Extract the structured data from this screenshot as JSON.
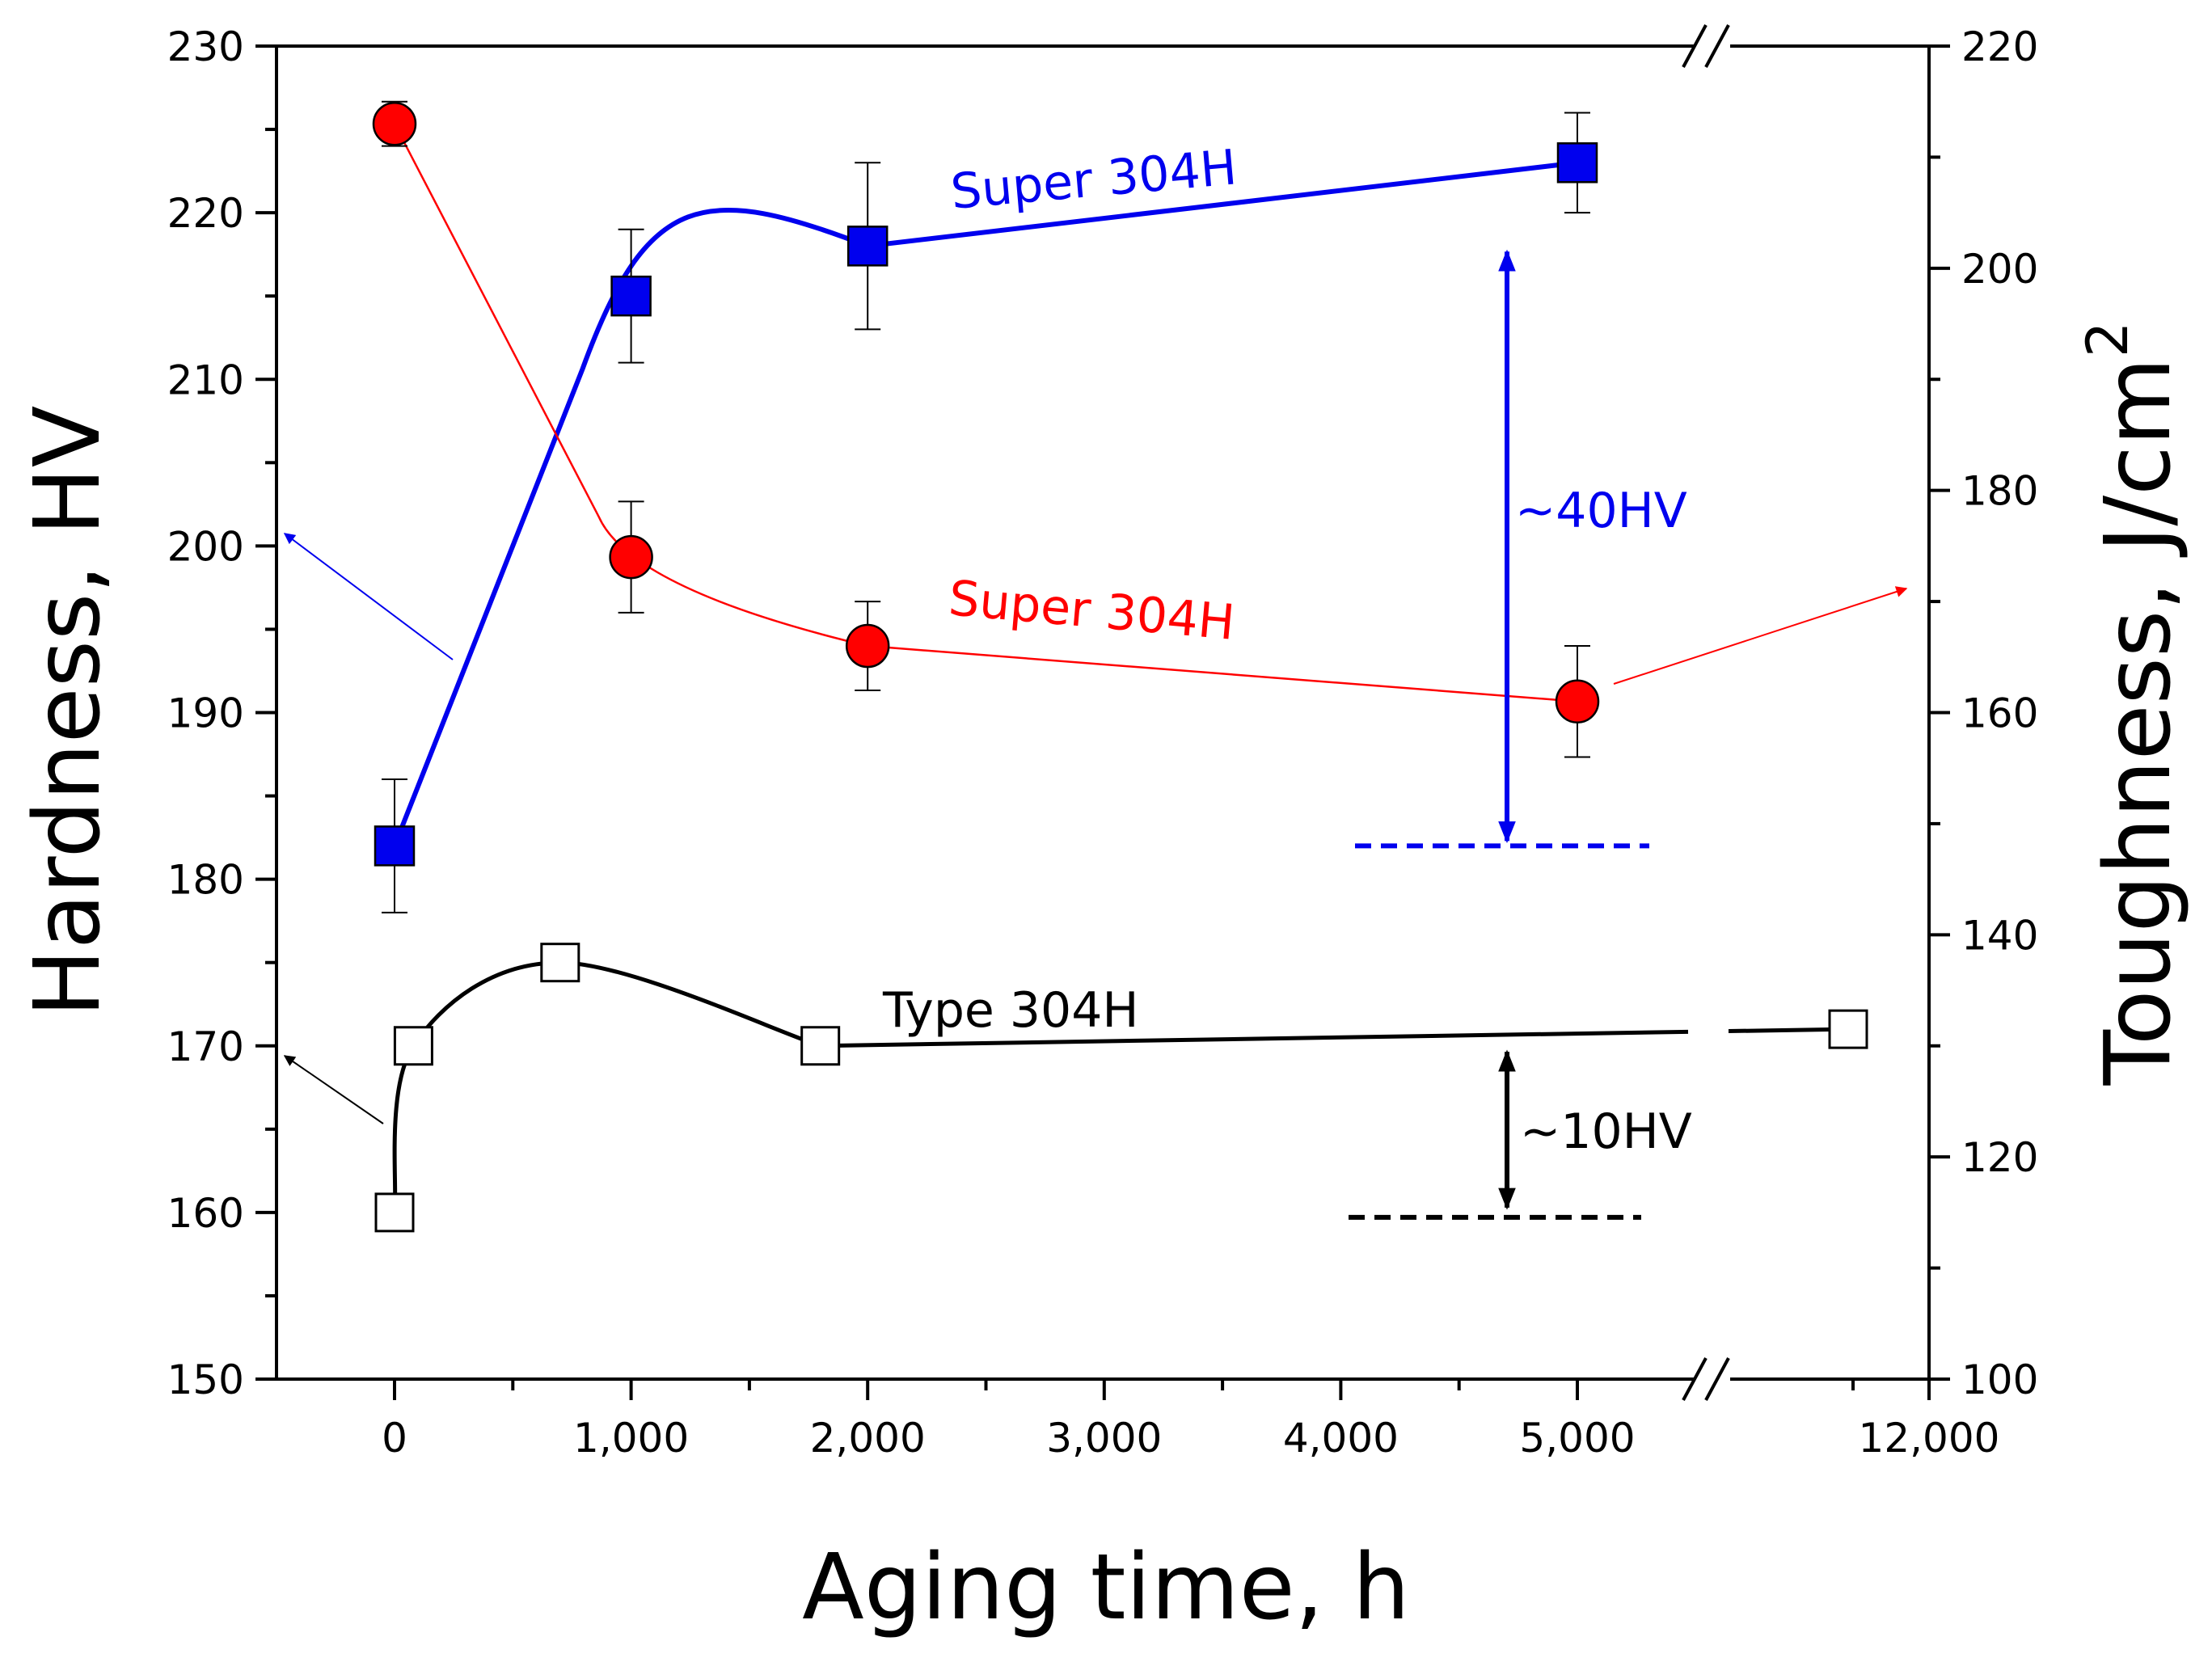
{
  "chart_data": {
    "type": "line",
    "xlabel": "Aging time, h",
    "ylabel_left": "Hardness, HV",
    "ylabel_right_base": "Toughness, J/cm",
    "ylabel_right_superscript": "2",
    "x_ticks": [
      "0",
      "1,000",
      "2,000",
      "3,000",
      "4,000",
      "5,000",
      "12,000"
    ],
    "x_tick_values": [
      0,
      1000,
      2000,
      3000,
      4000,
      5000,
      12000
    ],
    "x_axis_break": "between 5,000 and 12,000",
    "ylim_left": [
      150,
      230
    ],
    "y_ticks_left": [
      "150",
      "160",
      "170",
      "180",
      "190",
      "200",
      "210",
      "220",
      "230"
    ],
    "ylim_right": [
      100,
      220
    ],
    "y_ticks_right": [
      "100",
      "120",
      "140",
      "160",
      "180",
      "200",
      "220"
    ],
    "grid": false,
    "series": [
      {
        "name": "Super 304H",
        "axis": "left",
        "color": "#0000ee",
        "marker": "filled-square",
        "points": [
          {
            "x": 0,
            "y": 182,
            "err": 4
          },
          {
            "x": 1000,
            "y": 215,
            "err": 4
          },
          {
            "x": 2000,
            "y": 218,
            "err": 5
          },
          {
            "x": 5000,
            "y": 223,
            "err": 3
          }
        ]
      },
      {
        "name": "Super 304H",
        "axis": "right",
        "color": "#ff0000",
        "marker": "filled-circle",
        "points": [
          {
            "x": 0,
            "y": 213,
            "err": 2
          },
          {
            "x": 1000,
            "y": 174,
            "err": 5
          },
          {
            "x": 2000,
            "y": 166,
            "err": 4
          },
          {
            "x": 5000,
            "y": 161,
            "err": 5
          }
        ]
      },
      {
        "name": "Type 304H",
        "axis": "left",
        "color": "#000000",
        "marker": "open-square",
        "points": [
          {
            "x": 0,
            "y": 160
          },
          {
            "x": 80,
            "y": 170
          },
          {
            "x": 700,
            "y": 175
          },
          {
            "x": 1800,
            "y": 170
          },
          {
            "x": 12000,
            "y": 171
          }
        ]
      }
    ],
    "annotations": [
      {
        "text": "~40HV",
        "color": "#0000ee"
      },
      {
        "text": "~10HV",
        "color": "#000000"
      }
    ]
  }
}
